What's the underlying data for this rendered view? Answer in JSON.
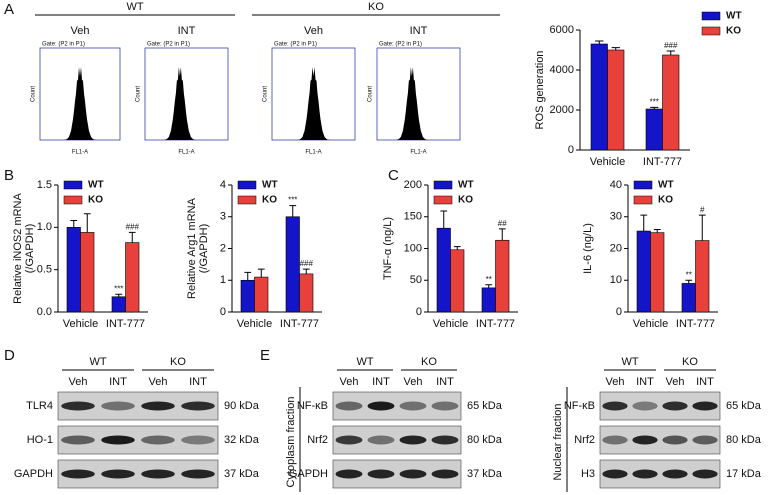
{
  "panel_letters": [
    "A",
    "B",
    "C",
    "D",
    "E"
  ],
  "flow": {
    "groups": [
      "WT",
      "KO"
    ],
    "conditions": [
      "Veh",
      "INT",
      "Veh",
      "INT"
    ],
    "gate": "Gate: (P2 in P1)",
    "ylabel": "Count",
    "xlabel": "FL1-A"
  },
  "blots": {
    "D": {
      "groups": [
        "WT",
        "KO"
      ],
      "lanes": [
        "Veh",
        "INT",
        "Veh",
        "INT"
      ],
      "rows": [
        "TLR4",
        "HO-1",
        "GAPDH"
      ],
      "sizes": [
        "90 kDa",
        "32 kDa",
        "37 kDa"
      ]
    },
    "E_cytoplasm": {
      "fraction": "Cytoplasm fraction",
      "groups": [
        "WT",
        "KO"
      ],
      "lanes": [
        "Veh",
        "INT",
        "Veh",
        "INT"
      ],
      "rows": [
        "NF-κB",
        "Nrf2",
        "GAPDH"
      ],
      "sizes": [
        "65 kDa",
        "80 kDa",
        "37 kDa"
      ]
    },
    "E_nuclear": {
      "fraction": "Nuclear fraction",
      "groups": [
        "WT",
        "KO"
      ],
      "lanes": [
        "Veh",
        "INT",
        "Veh",
        "INT"
      ],
      "rows": [
        "NF-κB",
        "Nrf2",
        "H3"
      ],
      "sizes": [
        "65 kDa",
        "80 kDa",
        "17 kDa"
      ]
    }
  },
  "chart_data": [
    {
      "type": "bar",
      "ylabel": "ROS generation",
      "categories": [
        "Vehicle",
        "INT-777"
      ],
      "ylim": [
        0,
        6000
      ],
      "yticks": [
        0,
        2000,
        4000,
        6000
      ],
      "legend": "upper right",
      "series": [
        {
          "name": "WT",
          "color": "#1414c8",
          "values": [
            5300,
            2050
          ],
          "errors": [
            150,
            80
          ],
          "significance": [
            null,
            "***"
          ]
        },
        {
          "name": "KO",
          "color": "#e8413c",
          "values": [
            5000,
            4750
          ],
          "errors": [
            120,
            200
          ],
          "significance": [
            null,
            "###"
          ]
        }
      ]
    },
    {
      "type": "bar",
      "ylabel": [
        "Relative iNOS2 mRNA",
        "(/GAPDH)"
      ],
      "categories": [
        "Vehicle",
        "INT-777"
      ],
      "ylim": [
        0,
        1.5
      ],
      "yticks": [
        {
          "value": 0,
          "label": "0.0"
        },
        {
          "value": 0.5,
          "label": "0.5"
        },
        {
          "value": 1,
          "label": "1.0"
        },
        {
          "value": 1.5,
          "label": "1.5"
        }
      ],
      "legend": "upper left",
      "series": [
        {
          "name": "WT",
          "color": "#1414c8",
          "values": [
            1.0,
            0.18
          ],
          "errors": [
            0.08,
            0.03
          ],
          "significance": [
            null,
            "***"
          ]
        },
        {
          "name": "KO",
          "color": "#e8413c",
          "values": [
            0.94,
            0.82
          ],
          "errors": [
            0.22,
            0.12
          ],
          "significance": [
            null,
            "###"
          ]
        }
      ]
    },
    {
      "type": "bar",
      "ylabel": [
        "Relative Arg1 mRNA",
        "(/GAPDH)"
      ],
      "categories": [
        "Vehicle",
        "INT-777"
      ],
      "ylim": [
        0,
        4
      ],
      "yticks": [
        0,
        1,
        2,
        3,
        4
      ],
      "legend": "upper left",
      "series": [
        {
          "name": "WT",
          "color": "#1414c8",
          "values": [
            1.0,
            3.0
          ],
          "errors": [
            0.25,
            0.35
          ],
          "significance": [
            null,
            "***"
          ]
        },
        {
          "name": "KO",
          "color": "#e8413c",
          "values": [
            1.1,
            1.2
          ],
          "errors": [
            0.25,
            0.15
          ],
          "significance": [
            null,
            "###"
          ]
        }
      ]
    },
    {
      "type": "bar",
      "ylabel": "TNF-α (ng/L)",
      "categories": [
        "Vehicle",
        "INT-777"
      ],
      "ylim": [
        0,
        200
      ],
      "yticks": [
        0,
        50,
        100,
        150,
        200
      ],
      "legend": "upper left",
      "series": [
        {
          "name": "WT",
          "color": "#1414c8",
          "values": [
            132,
            38
          ],
          "errors": [
            27,
            5
          ],
          "significance": [
            null,
            "**"
          ]
        },
        {
          "name": "KO",
          "color": "#e8413c",
          "values": [
            98,
            113
          ],
          "errors": [
            5,
            18
          ],
          "significance": [
            null,
            "##"
          ]
        }
      ]
    },
    {
      "type": "bar",
      "ylabel": "IL-6 (ng/L)",
      "categories": [
        "Vehicle",
        "INT-777"
      ],
      "ylim": [
        0,
        40
      ],
      "yticks": [
        0,
        10,
        20,
        30,
        40
      ],
      "legend": "upper left",
      "series": [
        {
          "name": "WT",
          "color": "#1414c8",
          "values": [
            25.5,
            9
          ],
          "errors": [
            5,
            1
          ],
          "significance": [
            null,
            "**"
          ]
        },
        {
          "name": "KO",
          "color": "#e8413c",
          "values": [
            25,
            22.5
          ],
          "errors": [
            1,
            8
          ],
          "significance": [
            null,
            "#"
          ]
        }
      ]
    }
  ]
}
